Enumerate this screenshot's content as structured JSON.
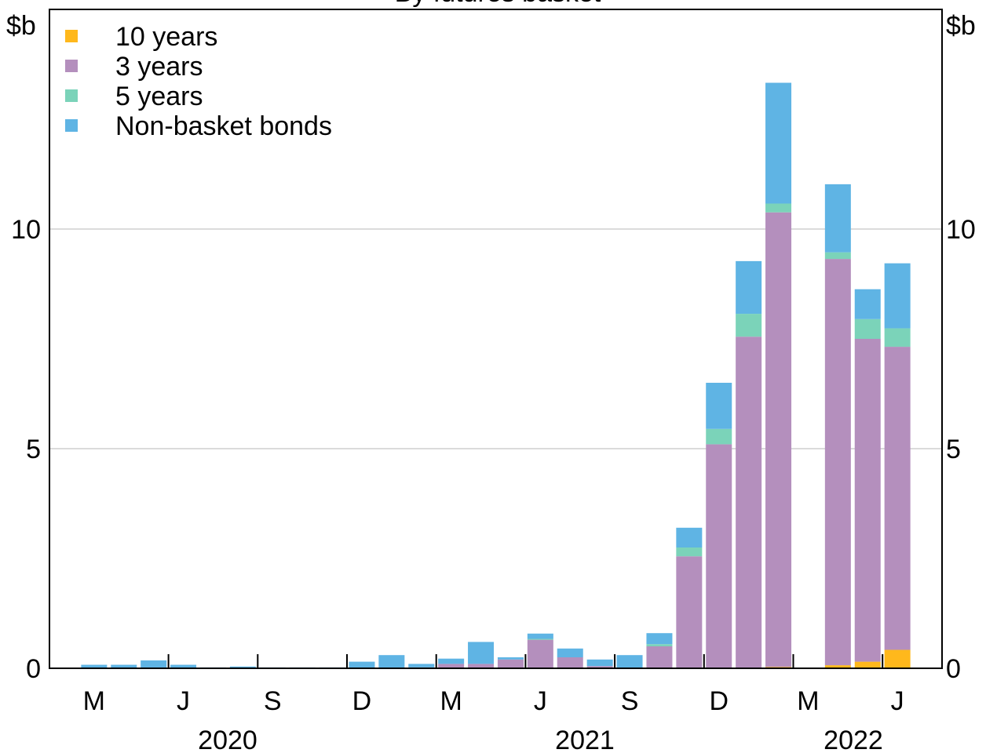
{
  "chart_data": {
    "type": "bar",
    "stacked": true,
    "title": "By futures basket",
    "y_unit_left": "$b",
    "y_unit_right": "$b",
    "ylim": [
      0,
      15
    ],
    "yticks": [
      0,
      5,
      10
    ],
    "grid": true,
    "legend_position": "top-left",
    "x_months": [
      "M",
      "J",
      "S",
      "D",
      "M",
      "J",
      "S",
      "D",
      "M",
      "J"
    ],
    "x_years": [
      "2020",
      "2021",
      "2022"
    ],
    "categories": [
      "2020-04",
      "2020-05",
      "2020-06",
      "2020-07",
      "2020-08",
      "2020-09",
      "2020-10",
      "2020-11",
      "2020-12",
      "2021-01",
      "2021-02",
      "2021-03",
      "2021-04",
      "2021-05",
      "2021-06",
      "2021-07",
      "2021-08",
      "2021-09",
      "2021-10",
      "2021-11",
      "2021-12",
      "2022-01",
      "2022-02",
      "2022-03",
      "2022-04",
      "2022-05",
      "2022-06",
      "2022-07",
      "2022-08"
    ],
    "series": [
      {
        "name": "10 years",
        "color": "#FFB81C",
        "values": [
          0,
          0,
          0,
          0,
          0,
          0,
          0,
          0,
          0,
          0,
          0,
          0,
          0,
          0,
          0,
          0,
          0,
          0,
          0,
          0,
          0,
          0,
          0,
          0.03,
          0,
          0.07,
          0.15,
          0.42,
          0
        ]
      },
      {
        "name": "3 years",
        "color": "#B48FBD",
        "values": [
          0,
          0,
          0,
          0,
          0,
          0,
          0,
          0,
          0,
          0,
          0,
          0.02,
          0.1,
          0.1,
          0.2,
          0.65,
          0.25,
          0.05,
          0,
          0.5,
          2.55,
          5.1,
          7.55,
          10.35,
          0,
          9.25,
          7.35,
          6.9,
          0
        ]
      },
      {
        "name": "5 years",
        "color": "#7BD3B9",
        "values": [
          0,
          0,
          0,
          0,
          0,
          0,
          0,
          0,
          0,
          0,
          0,
          0,
          0,
          0,
          0,
          0.02,
          0,
          0,
          0,
          0.05,
          0.2,
          0.35,
          0.52,
          0.2,
          0,
          0.15,
          0.45,
          0.42,
          0
        ]
      },
      {
        "name": "Non-basket bonds",
        "color": "#5FB4E4",
        "values": [
          0.08,
          0.08,
          0.18,
          0.08,
          0.02,
          0.04,
          0.02,
          0.02,
          0.02,
          0.15,
          0.3,
          0.08,
          0.12,
          0.5,
          0.05,
          0.12,
          0.2,
          0.15,
          0.3,
          0.25,
          0.45,
          1.05,
          1.2,
          2.75,
          0,
          1.55,
          0.68,
          1.48,
          0
        ]
      }
    ]
  }
}
